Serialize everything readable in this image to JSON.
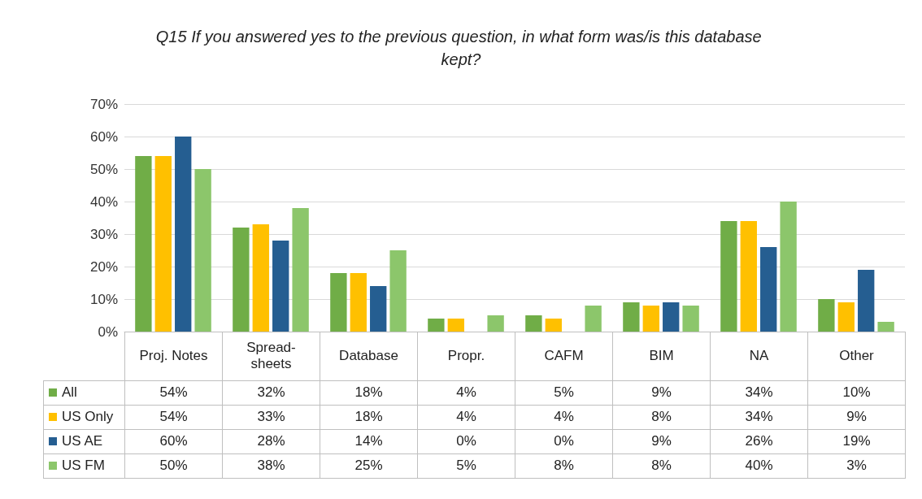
{
  "chart_data": {
    "type": "bar",
    "title": "Q15 If you answered yes to the previous question, in what form was/is this database kept?",
    "categories": [
      "Proj. Notes",
      "Spread-sheets",
      "Database",
      "Propr.",
      "CAFM",
      "BIM",
      "NA",
      "Other"
    ],
    "series": [
      {
        "name": "All",
        "color": "#70ad47",
        "values": [
          54,
          32,
          18,
          4,
          5,
          9,
          34,
          10
        ],
        "value_labels": [
          "54%",
          "32%",
          "18%",
          "4%",
          "5%",
          "9%",
          "34%",
          "10%"
        ]
      },
      {
        "name": "US Only",
        "color": "#ffc000",
        "values": [
          54,
          33,
          18,
          4,
          4,
          8,
          34,
          9
        ],
        "value_labels": [
          "54%",
          "33%",
          "18%",
          "4%",
          "4%",
          "8%",
          "34%",
          "9%"
        ]
      },
      {
        "name": "US AE",
        "color": "#255e91",
        "values": [
          60,
          28,
          14,
          0,
          0,
          9,
          26,
          19
        ],
        "value_labels": [
          "60%",
          "28%",
          "14%",
          "0%",
          "0%",
          "9%",
          "26%",
          "19%"
        ]
      },
      {
        "name": "US FM",
        "color": "#8cc66b",
        "values": [
          50,
          38,
          25,
          5,
          8,
          8,
          40,
          3
        ],
        "value_labels": [
          "50%",
          "38%",
          "25%",
          "5%",
          "8%",
          "8%",
          "40%",
          "3%"
        ]
      }
    ],
    "ylim": [
      0,
      70
    ],
    "yticks": [
      {
        "value": 0,
        "label": "0%"
      },
      {
        "value": 10,
        "label": "10%"
      },
      {
        "value": 20,
        "label": "20%"
      },
      {
        "value": 30,
        "label": "30%"
      },
      {
        "value": 40,
        "label": "40%"
      },
      {
        "value": 50,
        "label": "50%"
      },
      {
        "value": 60,
        "label": "60%"
      },
      {
        "value": 70,
        "label": "70%"
      }
    ],
    "grid": "y",
    "legend": "bottom"
  }
}
